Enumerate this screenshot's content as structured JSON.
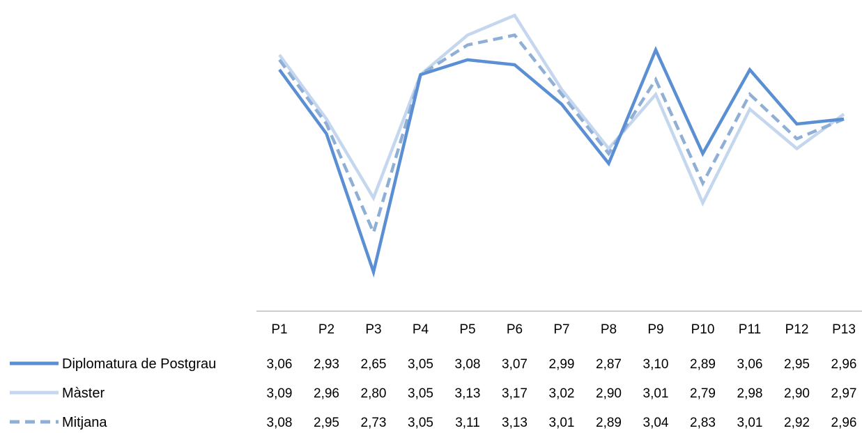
{
  "chart_data": {
    "type": "line",
    "title": "",
    "xlabel": "",
    "ylabel": "",
    "ylim": [
      2.62,
      3.18
    ],
    "grid": false,
    "legend": "data-table-left",
    "categories": [
      "P1",
      "P2",
      "P3",
      "P4",
      "P5",
      "P6",
      "P7",
      "P8",
      "P9",
      "P10",
      "P11",
      "P12",
      "P13"
    ],
    "series": [
      {
        "name": "Diplomatura de Postgrau",
        "color": "#5b8fd4",
        "style": "solid",
        "values": [
          3.06,
          2.93,
          2.65,
          3.05,
          3.08,
          3.07,
          2.99,
          2.87,
          3.1,
          2.89,
          3.06,
          2.95,
          2.96
        ],
        "labels": [
          "3,06",
          "2,93",
          "2,65",
          "3,05",
          "3,08",
          "3,07",
          "2,99",
          "2,87",
          "3,10",
          "2,89",
          "3,06",
          "2,95",
          "2,96"
        ]
      },
      {
        "name": "Màster",
        "color": "#c5d7ee",
        "style": "solid",
        "values": [
          3.09,
          2.96,
          2.8,
          3.05,
          3.13,
          3.17,
          3.02,
          2.9,
          3.01,
          2.79,
          2.98,
          2.9,
          2.97
        ],
        "labels": [
          "3,09",
          "2,96",
          "2,80",
          "3,05",
          "3,13",
          "3,17",
          "3,02",
          "2,90",
          "3,01",
          "2,79",
          "2,98",
          "2,90",
          "2,97"
        ]
      },
      {
        "name": "Mitjana",
        "color": "#8fafd6",
        "style": "dashed",
        "values": [
          3.08,
          2.95,
          2.73,
          3.05,
          3.11,
          3.13,
          3.01,
          2.89,
          3.04,
          2.83,
          3.01,
          2.92,
          2.96
        ],
        "labels": [
          "3,08",
          "2,95",
          "2,73",
          "3,05",
          "3,11",
          "3,13",
          "3,01",
          "2,89",
          "3,04",
          "2,83",
          "3,01",
          "2,92",
          "2,96"
        ]
      }
    ]
  }
}
